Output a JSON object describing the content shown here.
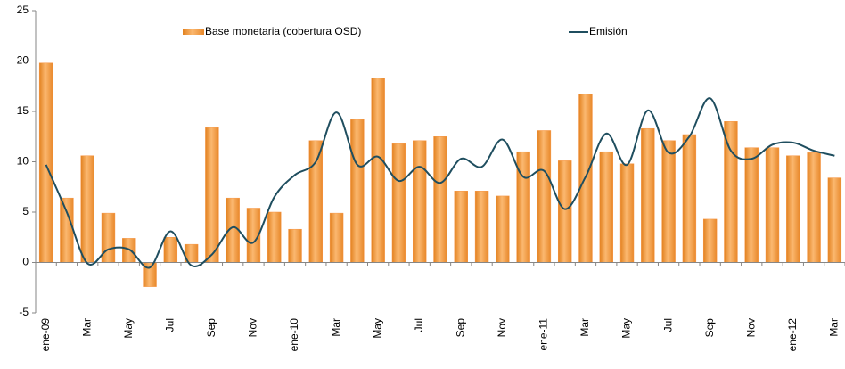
{
  "chart_data": {
    "type": "bar_line",
    "categories": [
      "ene-09",
      null,
      "Mar",
      null,
      "May",
      null,
      "Jul",
      null,
      "Sep",
      null,
      "Nov",
      null,
      "ene-10",
      null,
      "Mar",
      null,
      "May",
      null,
      "Jul",
      null,
      "Sep",
      null,
      "Nov",
      null,
      "ene-11",
      null,
      "Mar",
      null,
      "May",
      null,
      "Jul",
      null,
      "Sep",
      null,
      "Nov",
      null,
      "ene-12",
      null,
      "Mar"
    ],
    "series": [
      {
        "name": "Base monetaria (cobertura OSD)",
        "type": "bar",
        "color": "#f79646",
        "values": [
          19.8,
          6.4,
          10.6,
          4.9,
          2.4,
          -2.4,
          2.5,
          1.8,
          13.4,
          6.4,
          5.4,
          5.0,
          3.3,
          12.1,
          4.9,
          14.2,
          18.3,
          11.8,
          12.1,
          12.5,
          7.1,
          7.1,
          6.6,
          11.0,
          13.1,
          10.1,
          16.7,
          11.0,
          9.8,
          13.3,
          12.1,
          12.7,
          4.3,
          14.0,
          11.4,
          11.4,
          10.6,
          10.9,
          8.4
        ]
      },
      {
        "name": "Emisión",
        "type": "line",
        "color": "#1f4e5f",
        "values": [
          9.7,
          5.0,
          -0.1,
          1.3,
          1.3,
          -0.5,
          3.1,
          -0.3,
          0.8,
          3.5,
          2.0,
          6.5,
          8.7,
          10.0,
          14.9,
          9.7,
          10.5,
          8.1,
          9.5,
          7.9,
          10.3,
          9.5,
          12.2,
          8.5,
          9.1,
          5.3,
          8.5,
          12.8,
          9.7,
          15.1,
          10.9,
          12.5,
          16.3,
          11.1,
          10.3,
          11.7,
          11.9,
          11.1,
          10.6
        ]
      }
    ],
    "ylim": [
      -5,
      25
    ],
    "yticks": [
      -5,
      0,
      5,
      10,
      15,
      20,
      25
    ],
    "grid": false,
    "legend": "top",
    "smooth": true
  }
}
